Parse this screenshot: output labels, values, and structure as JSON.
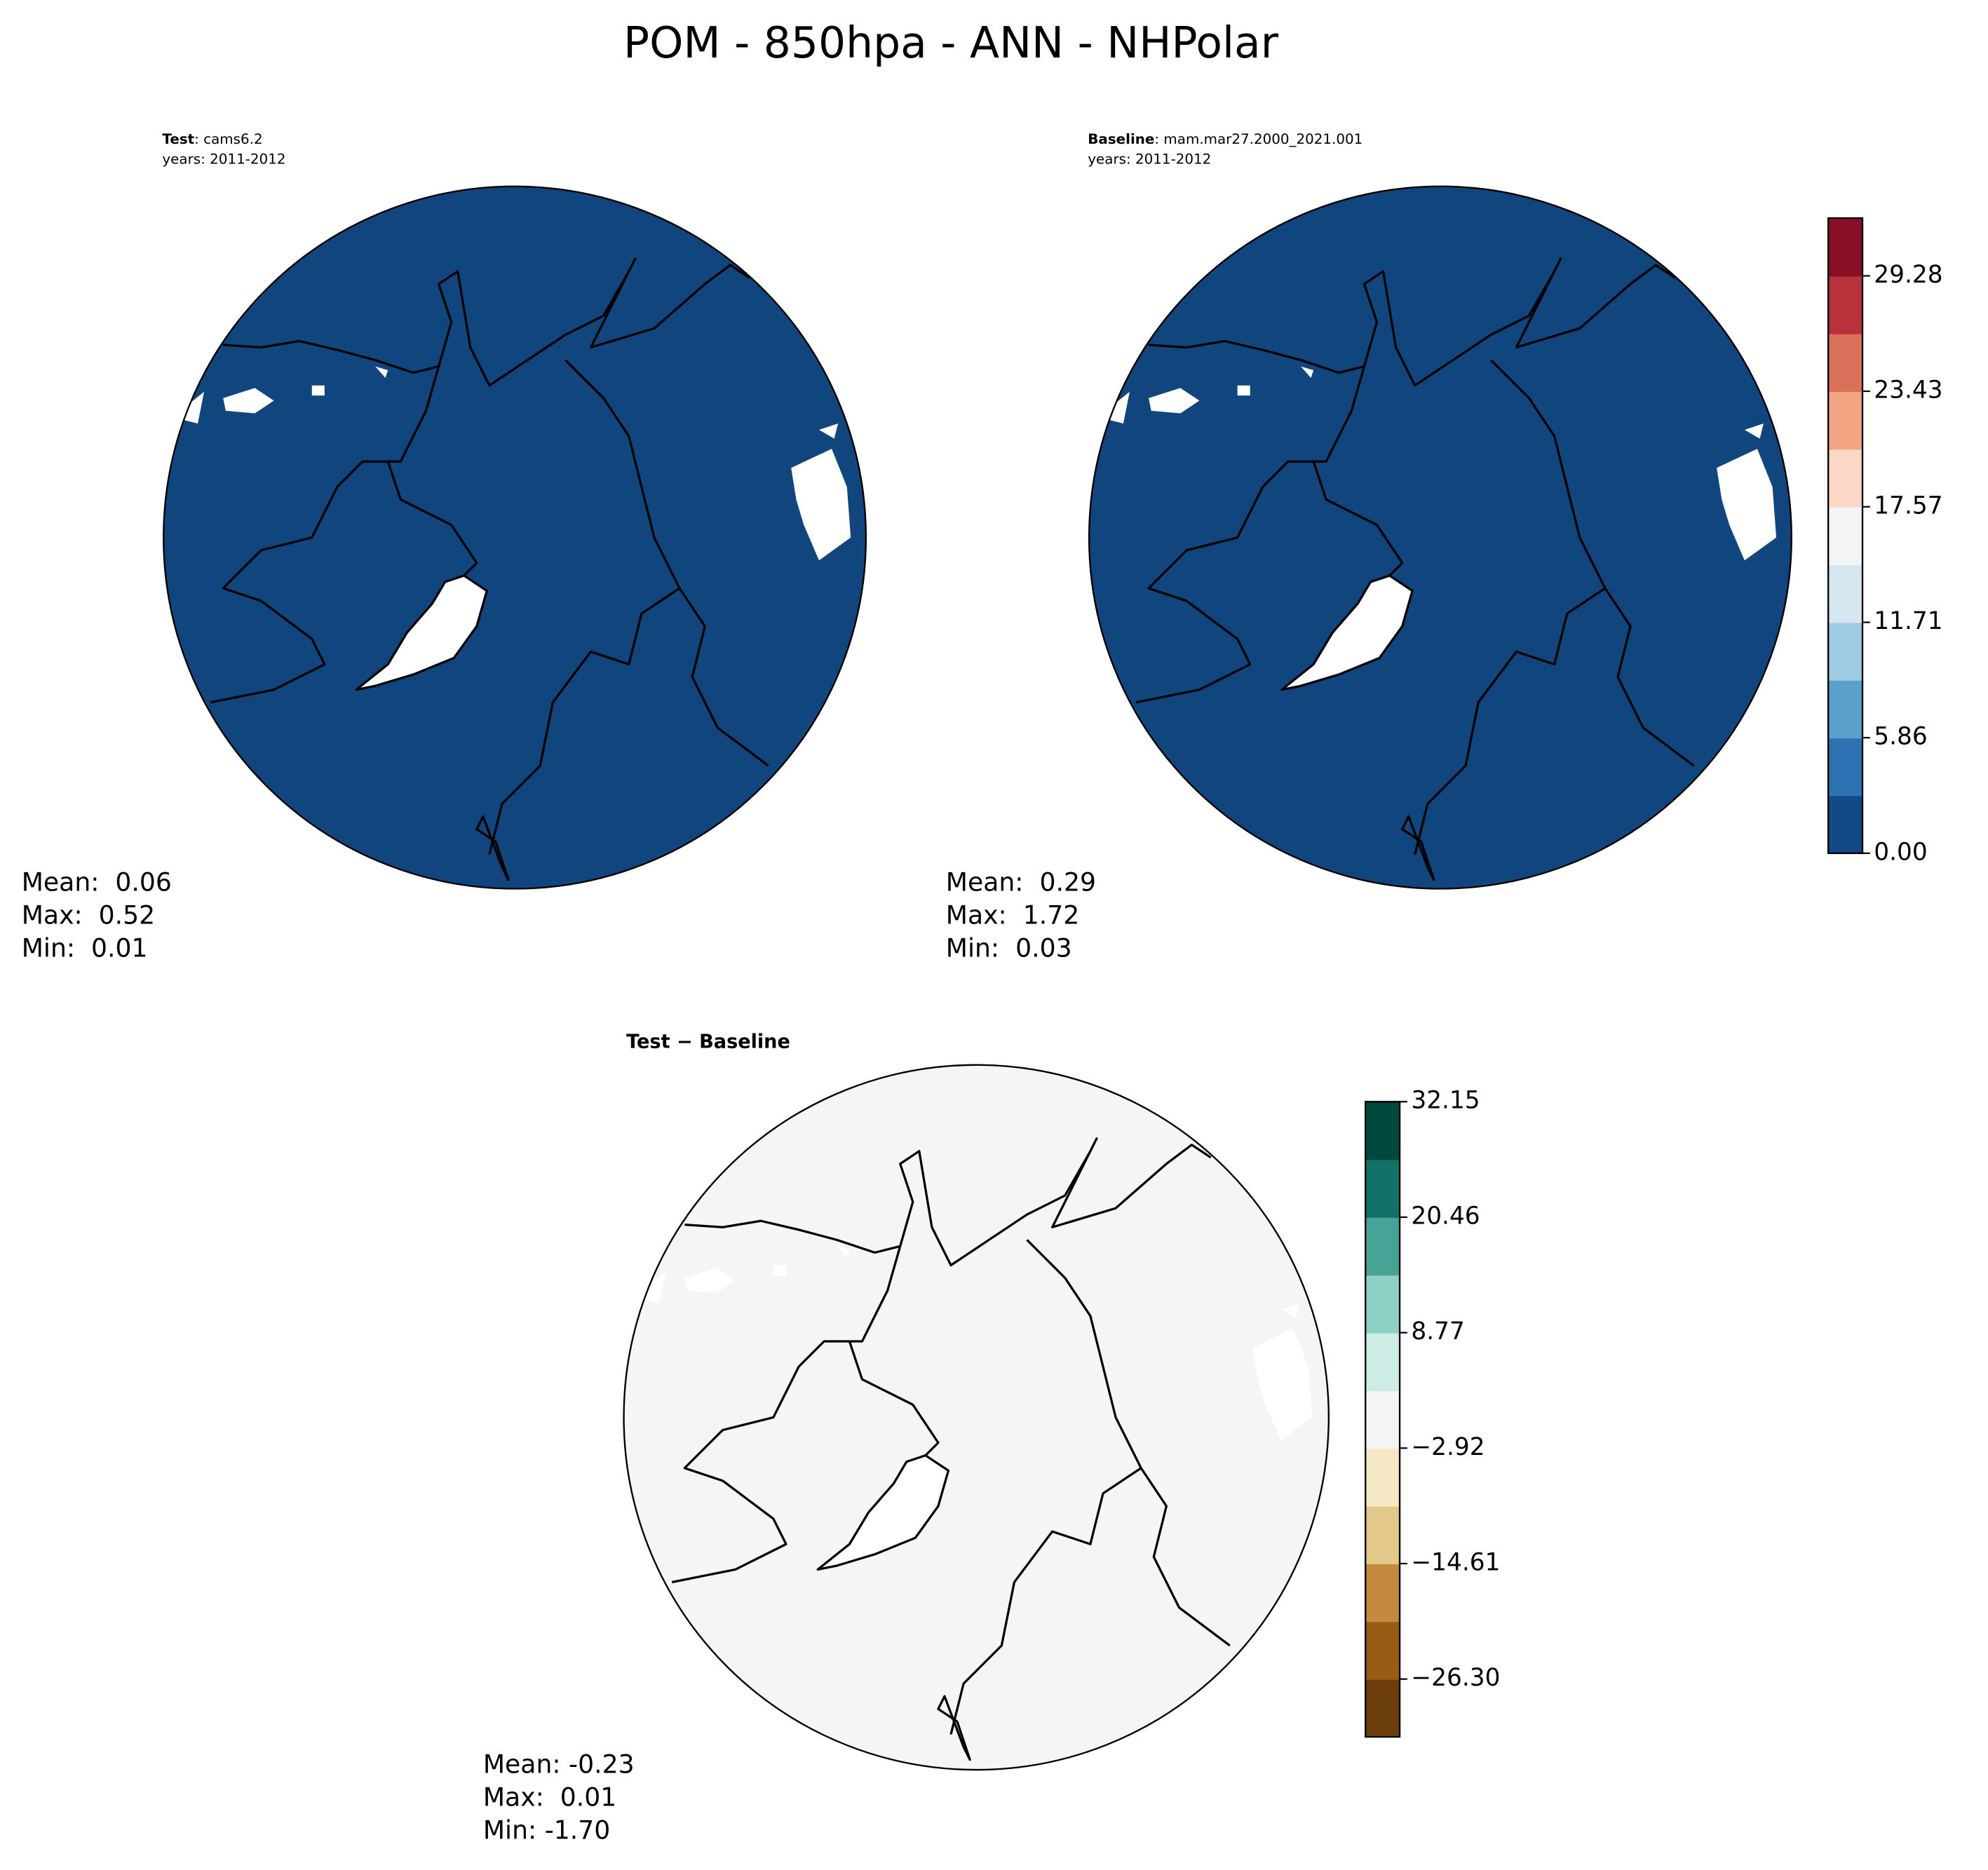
{
  "title": "POM - 850hpa - ANN - NHPolar",
  "panels": [
    {
      "label_bold": "Test",
      "label_rest": ": cams6.2",
      "years": "years: 2011-2012",
      "fill_color": "#11457e",
      "stats": [
        "Mean:  0.06",
        "Max:  0.52",
        "Min:  0.01"
      ]
    },
    {
      "label_bold": "Baseline",
      "label_rest": ": mam.mar27.2000_2021.001",
      "years": "years: 2011-2012",
      "fill_color": "#11457e",
      "stats": [
        "Mean:  0.29",
        "Max:  1.72",
        "Min:  0.03"
      ]
    },
    {
      "label_bold": "Test − Baseline",
      "fill_color": "#f4f5f4",
      "stats": [
        "Mean: -0.23",
        "Max:  0.01",
        "Min: -1.70"
      ]
    }
  ],
  "colorbars": [
    {
      "colors": [
        "#124a87",
        "#2d73b3",
        "#5aa0cb",
        "#9ecbe2",
        "#d5e6f0",
        "#f3f4f4",
        "#fbd8c5",
        "#f3a583",
        "#d9705a",
        "#b9313a",
        "#890f26"
      ],
      "ylim": [
        0,
        32.21
      ],
      "yticks": [
        {
          "value": 0,
          "label": "0.00"
        },
        {
          "value": 5.86,
          "label": "5.86"
        },
        {
          "value": 11.71,
          "label": "11.71"
        },
        {
          "value": 17.57,
          "label": "17.57"
        },
        {
          "value": 23.43,
          "label": "23.43"
        },
        {
          "value": 29.28,
          "label": "29.28"
        }
      ]
    },
    {
      "colors": [
        "#6b3e0a",
        "#985c14",
        "#c48b3f",
        "#e2c889",
        "#f5e8c4",
        "#f3f4f4",
        "#cdece6",
        "#8ed0c4",
        "#46a395",
        "#137268",
        "#02493d"
      ],
      "ylim": [
        -32.15,
        32.15
      ],
      "yticks": [
        {
          "value": -26.3,
          "label": "−26.30"
        },
        {
          "value": -14.61,
          "label": "−14.61"
        },
        {
          "value": -2.92,
          "label": "−2.92"
        },
        {
          "value": 8.77,
          "label": "8.77"
        },
        {
          "value": 20.46,
          "label": "20.46"
        },
        {
          "value": 32.15,
          "label": "32.15"
        }
      ]
    }
  ]
}
